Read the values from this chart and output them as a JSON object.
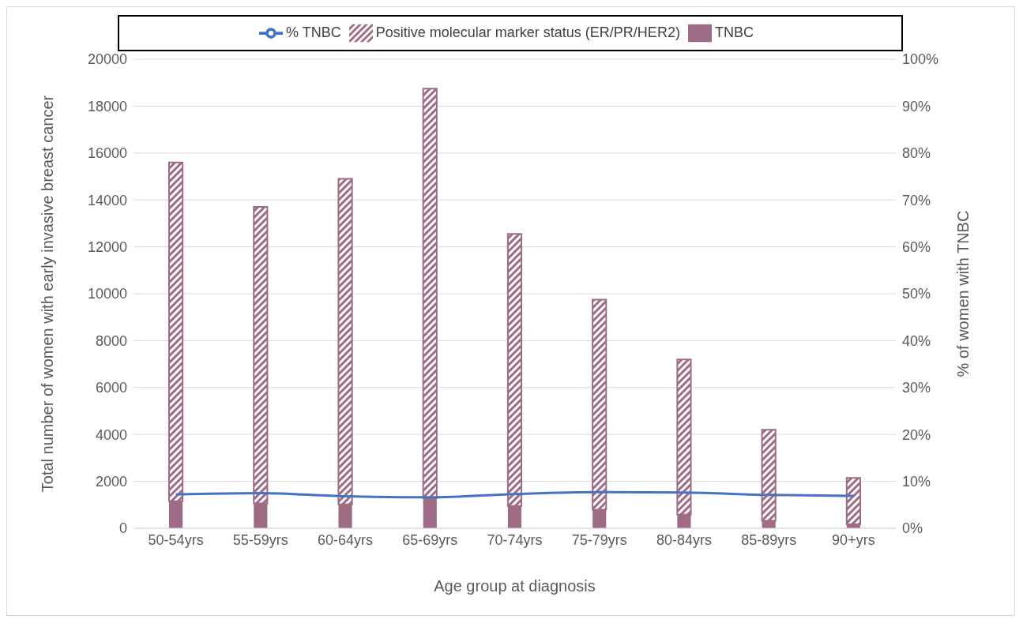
{
  "chart_data": {
    "type": "bar",
    "stacked": true,
    "xlabel": "Age group at diagnosis",
    "ylabel": "Total number of women with early invasive breast cancer",
    "y2label": "% of women with TNBC",
    "categories": [
      "50-54yrs",
      "55-59yrs",
      "60-64yrs",
      "65-69yrs",
      "70-74yrs",
      "75-79yrs",
      "80-84yrs",
      "85-89yrs",
      "90+yrs"
    ],
    "series": [
      {
        "name": "TNBC",
        "color": "#9e6b85",
        "values": [
          1150,
          1060,
          1020,
          1270,
          950,
          790,
          580,
          320,
          170
        ]
      },
      {
        "name": "Positive molecular marker status (ER/PR/HER2)",
        "color": "#9e6b85",
        "values": [
          14450,
          12640,
          13880,
          17480,
          11600,
          8960,
          6620,
          3880,
          1980
        ]
      },
      {
        "name": "% TNBC",
        "type": "line",
        "axis": "y2",
        "color": "#4472c4",
        "values": [
          7.2,
          7.5,
          6.8,
          6.6,
          7.3,
          7.7,
          7.6,
          7.1,
          6.9
        ]
      }
    ],
    "ylim": [
      0,
      20000
    ],
    "yticks": [
      0,
      2000,
      4000,
      6000,
      8000,
      10000,
      12000,
      14000,
      16000,
      18000,
      20000
    ],
    "y2lim": [
      0,
      100
    ],
    "y2ticks": [
      {
        "value": 0,
        "label": "0%"
      },
      {
        "value": 10,
        "label": "10%"
      },
      {
        "value": 20,
        "label": "20%"
      },
      {
        "value": 30,
        "label": "30%"
      },
      {
        "value": 40,
        "label": "40%"
      },
      {
        "value": 50,
        "label": "50%"
      },
      {
        "value": 60,
        "label": "60%"
      },
      {
        "value": 70,
        "label": "70%"
      },
      {
        "value": 80,
        "label": "80%"
      },
      {
        "value": 90,
        "label": "90%"
      },
      {
        "value": 100,
        "label": "100%"
      }
    ],
    "grid": "y",
    "legend": "top",
    "marker": "none",
    "line_style": "solid"
  }
}
